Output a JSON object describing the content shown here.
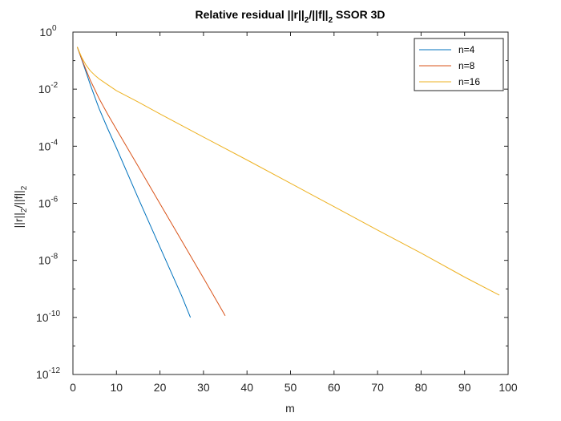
{
  "chart_data": {
    "type": "line",
    "title": "Relative residual ||r||_2/||f||_2 SSOR 3D",
    "title_parts": {
      "a": "Relative residual ||r||",
      "b": "2",
      "c": "/||f||",
      "d": "2",
      "e": " SSOR 3D"
    },
    "xlabel": "m",
    "ylabel_parts": {
      "a": "||r||",
      "b": "2",
      "c": "/||f||",
      "d": "2"
    },
    "x_scale": "linear",
    "y_scale": "log",
    "xlim": [
      0,
      100
    ],
    "ylim": [
      1e-12,
      1
    ],
    "xticks": [
      0,
      10,
      20,
      30,
      40,
      50,
      60,
      70,
      80,
      90,
      100
    ],
    "xtick_labels": [
      "0",
      "10",
      "20",
      "30",
      "40",
      "50",
      "60",
      "70",
      "80",
      "90",
      "100"
    ],
    "yticks": [
      1e-12,
      1e-10,
      1e-08,
      1e-06,
      0.0001,
      0.01,
      1
    ],
    "ytick_labels": [
      {
        "base": "10",
        "exp": "-12"
      },
      {
        "base": "10",
        "exp": "-10"
      },
      {
        "base": "10",
        "exp": "-8"
      },
      {
        "base": "10",
        "exp": "-6"
      },
      {
        "base": "10",
        "exp": "-4"
      },
      {
        "base": "10",
        "exp": "-2"
      },
      {
        "base": "10",
        "exp": "0"
      }
    ],
    "grid": false,
    "legend_position": "top-right",
    "series": [
      {
        "name": "n=4",
        "color": "#0072BD",
        "x": [
          1,
          2,
          3,
          4,
          5,
          6,
          8,
          10,
          15,
          20,
          25,
          27
        ],
        "y": [
          0.3,
          0.11,
          0.04,
          0.0142,
          0.0054,
          0.0021,
          0.00041,
          8.7e-05,
          1.53e-06,
          2.9e-08,
          5.6e-10,
          1e-10
        ]
      },
      {
        "name": "n=8",
        "color": "#D95319",
        "x": [
          1,
          2,
          3,
          4,
          5,
          6,
          8,
          10,
          15,
          20,
          25,
          30,
          35
        ],
        "y": [
          0.3,
          0.115,
          0.048,
          0.0205,
          0.0098,
          0.0047,
          0.00132,
          0.00039,
          1.97e-05,
          9.7e-07,
          4.8e-08,
          2.4e-09,
          1.15e-10
        ]
      },
      {
        "name": "n=16",
        "color": "#EDB120",
        "x": [
          1,
          2,
          3,
          4,
          5,
          6,
          8,
          10,
          15,
          20,
          30,
          40,
          50,
          60,
          70,
          80,
          90,
          98
        ],
        "y": [
          0.3,
          0.13,
          0.07,
          0.044,
          0.031,
          0.023,
          0.0142,
          0.0088,
          0.00355,
          0.00135,
          0.00021,
          3.3e-05,
          5e-06,
          7.6e-07,
          1.15e-07,
          1.8e-08,
          2.6e-09,
          6e-10
        ]
      }
    ]
  }
}
